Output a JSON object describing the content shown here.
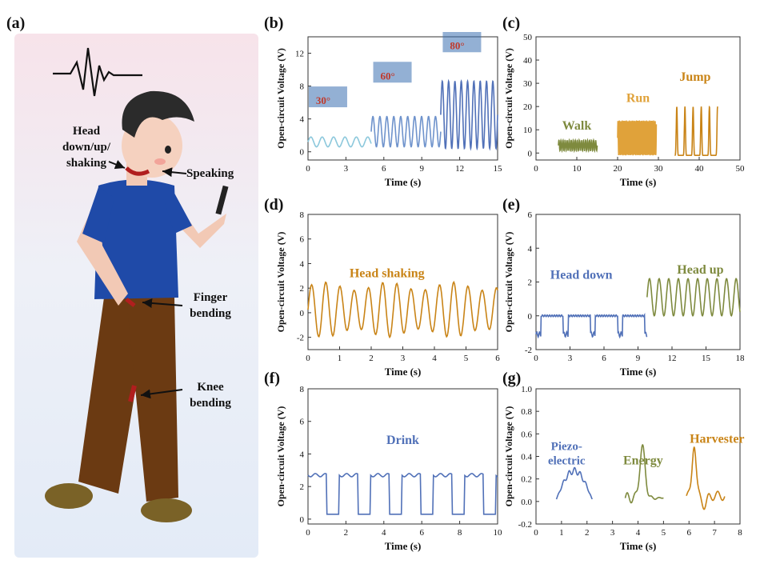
{
  "panels": {
    "a": "(a)",
    "b": "(b)",
    "c": "(c)",
    "d": "(d)",
    "e": "(e)",
    "f": "(f)",
    "g": "(g)"
  },
  "illustration": {
    "head_label_1": "Head",
    "head_label_2": "down/up/",
    "head_label_3": "shaking",
    "speaking": "Speaking",
    "finger_1": "Finger",
    "finger_2": "bending",
    "knee_1": "Knee",
    "knee_2": "bending",
    "icon": "waveform-icon"
  },
  "colors": {
    "light_blue": "#8cc8dc",
    "mid_blue": "#6f93cc",
    "dark_blue": "#5171b8",
    "olive": "#7e8a3e",
    "orange": "#e0a23a",
    "dark_orange": "#c98417"
  },
  "chart_data": [
    {
      "id": "b",
      "type": "line",
      "xlabel": "Time (s)",
      "ylabel": "Open-circuit Voltage (V)",
      "xlim": [
        0,
        15
      ],
      "ylim": [
        -1,
        14
      ],
      "xticks": [
        0,
        3,
        6,
        9,
        12,
        15
      ],
      "yticks": [
        0,
        4,
        8,
        12
      ],
      "annotations": [
        "30°",
        "60°",
        "80°"
      ],
      "series": [
        {
          "segment": [
            0,
            5
          ],
          "amplitude": [
            0.6,
            1.8
          ],
          "period": 0.9,
          "color": "#8cc8dc"
        },
        {
          "segment": [
            5,
            10.5
          ],
          "amplitude": [
            0.6,
            4.3
          ],
          "period": 0.55,
          "color": "#6f93cc"
        },
        {
          "segment": [
            10.5,
            15
          ],
          "amplitude": [
            0.4,
            8.6
          ],
          "period": 0.5,
          "color": "#5171b8"
        }
      ]
    },
    {
      "id": "c",
      "type": "line",
      "xlabel": "Time (s)",
      "ylabel": "Open-circuit Voltage (V)",
      "xlim": [
        0,
        50
      ],
      "ylim": [
        -3,
        50
      ],
      "xticks": [
        0,
        10,
        20,
        30,
        40,
        50
      ],
      "yticks": [
        0,
        10,
        20,
        30,
        40,
        50
      ],
      "series": [
        {
          "name": "Walk",
          "segment": [
            5.5,
            15
          ],
          "amplitude": [
            1,
            5.5
          ],
          "period": 0.5,
          "color": "#7e8a3e"
        },
        {
          "name": "Run",
          "segment": [
            20,
            29.5
          ],
          "amplitude": [
            -1,
            14
          ],
          "period": 0.35,
          "color": "#e0a23a"
        },
        {
          "name": "Jump",
          "segment": [
            34,
            44.5
          ],
          "amplitude": [
            -1,
            20
          ],
          "period": 2.0,
          "color": "#c98417"
        }
      ]
    },
    {
      "id": "d",
      "type": "line",
      "xlabel": "Time (s)",
      "ylabel": "Open-circuit Voltage (V)",
      "xlim": [
        0,
        6
      ],
      "ylim": [
        -3,
        8
      ],
      "xticks": [
        0,
        1,
        2,
        3,
        4,
        5,
        6
      ],
      "yticks": [
        -2,
        0,
        2,
        4,
        6,
        8
      ],
      "series": [
        {
          "name": "Head shaking",
          "segment": [
            0,
            6
          ],
          "amplitude": [
            -2,
            2.5
          ],
          "period": 0.45,
          "color": "#c98417"
        }
      ]
    },
    {
      "id": "e",
      "type": "line",
      "xlabel": "Time (s)",
      "ylabel": "Open-circuit Voltage (V)",
      "xlim": [
        0,
        18
      ],
      "ylim": [
        -2,
        6
      ],
      "xticks": [
        0,
        3,
        6,
        9,
        12,
        15,
        18
      ],
      "yticks": [
        -2,
        0,
        2,
        4,
        6
      ],
      "series": [
        {
          "name": "Head down",
          "segment": [
            0,
            9.8
          ],
          "amplitude": [
            -1.1,
            0
          ],
          "period": 2.4,
          "color": "#5171b8"
        },
        {
          "name": "Head up",
          "segment": [
            9.8,
            18
          ],
          "amplitude": [
            0,
            2.2
          ],
          "period": 0.85,
          "color": "#7e8a3e"
        }
      ]
    },
    {
      "id": "f",
      "type": "line",
      "xlabel": "Time (s)",
      "ylabel": "Open-circuit Voltage (V)",
      "xlim": [
        0,
        10
      ],
      "ylim": [
        -0.3,
        8
      ],
      "xticks": [
        0,
        2,
        4,
        6,
        8,
        10
      ],
      "yticks": [
        0,
        2,
        4,
        6,
        8
      ],
      "series": [
        {
          "name": "Drink",
          "segment": [
            0,
            10
          ],
          "amplitude": [
            0.3,
            2.7
          ],
          "period": 1.65,
          "color": "#5171b8"
        }
      ]
    },
    {
      "id": "g",
      "type": "line",
      "xlabel": "Time (s)",
      "ylabel": "Open-circuit Voltage (V)",
      "xlim": [
        0,
        8
      ],
      "ylim": [
        -0.2,
        1.0
      ],
      "xticks": [
        0,
        1,
        2,
        3,
        4,
        5,
        6,
        7,
        8
      ],
      "yticks": [
        -0.2,
        0.0,
        0.2,
        0.4,
        0.6,
        0.8,
        1.0
      ],
      "series": [
        {
          "name": "Piezo-electric",
          "segment": [
            0.8,
            2.2
          ],
          "peak": 0.28,
          "color": "#5171b8"
        },
        {
          "name": "Energy",
          "segment": [
            3.5,
            5.0
          ],
          "peak": 0.45,
          "color": "#7e8a3e"
        },
        {
          "name": "Harvester",
          "segment": [
            5.9,
            7.4
          ],
          "peak": 0.47,
          "color": "#c98417"
        }
      ]
    }
  ]
}
